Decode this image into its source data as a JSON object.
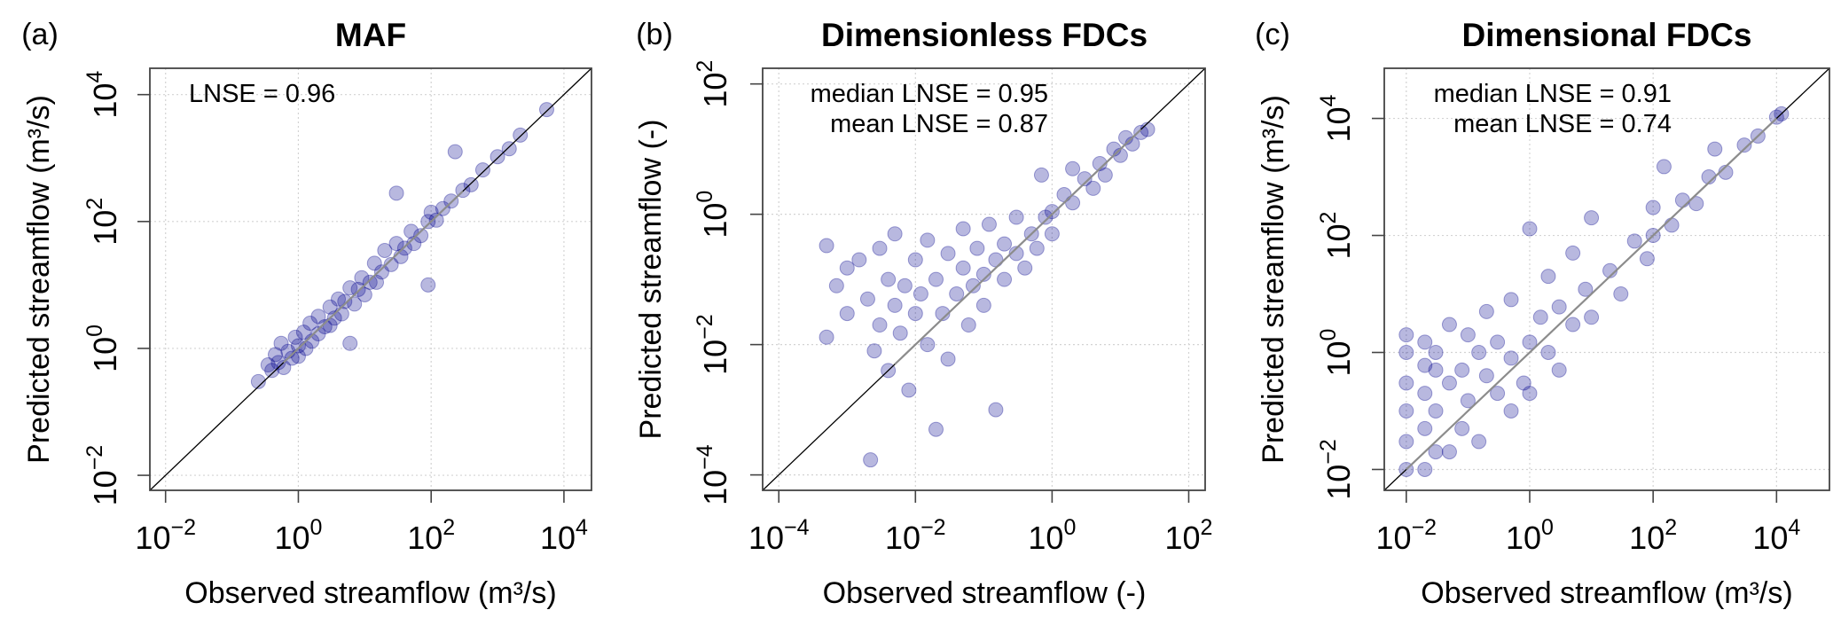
{
  "chart_data": [
    {
      "type": "scatter",
      "panel_label": "(a)",
      "title": "MAF",
      "xlabel": "Observed streamflow (m³/s)",
      "ylabel": "Predicted streamflow (m³/s)",
      "x_scale": "log10",
      "y_scale": "log10",
      "xlim": [
        0.0058,
        26000
      ],
      "ylim": [
        0.0058,
        26000
      ],
      "x_tick_exponents": [
        -2,
        0,
        2,
        4
      ],
      "y_tick_exponents": [
        -2,
        0,
        2,
        4
      ],
      "grid": true,
      "annotations": [
        "LNSE =  0.96"
      ],
      "reference_line": "1:1",
      "highlight_line_range": [
        0.6,
        300
      ],
      "point_color": "#00008B",
      "points": [
        [
          0.25,
          0.3
        ],
        [
          0.35,
          0.55
        ],
        [
          0.4,
          0.45
        ],
        [
          0.45,
          0.8
        ],
        [
          0.5,
          0.6
        ],
        [
          0.55,
          1.2
        ],
        [
          0.6,
          0.5
        ],
        [
          0.7,
          0.9
        ],
        [
          0.8,
          0.7
        ],
        [
          0.9,
          1.5
        ],
        [
          1,
          1.1
        ],
        [
          1,
          0.75
        ],
        [
          1.2,
          1.8
        ],
        [
          1.3,
          1.0
        ],
        [
          1.5,
          2.5
        ],
        [
          1.6,
          1.3
        ],
        [
          2,
          1.7
        ],
        [
          2,
          3.2
        ],
        [
          2.5,
          2.2
        ],
        [
          3,
          4.5
        ],
        [
          3,
          2.3
        ],
        [
          3.5,
          3
        ],
        [
          4,
          6
        ],
        [
          4.5,
          3.5
        ],
        [
          5,
          5.5
        ],
        [
          6,
          1.2
        ],
        [
          6,
          9
        ],
        [
          7,
          5
        ],
        [
          8,
          8.5
        ],
        [
          9,
          13
        ],
        [
          10,
          7
        ],
        [
          12,
          11
        ],
        [
          14,
          22
        ],
        [
          15,
          11
        ],
        [
          18,
          16
        ],
        [
          20,
          35
        ],
        [
          25,
          21
        ],
        [
          30,
          280
        ],
        [
          30,
          45
        ],
        [
          35,
          28
        ],
        [
          40,
          38
        ],
        [
          50,
          70
        ],
        [
          55,
          45
        ],
        [
          70,
          60
        ],
        [
          90,
          10
        ],
        [
          90,
          100
        ],
        [
          100,
          140
        ],
        [
          120,
          105
        ],
        [
          150,
          160
        ],
        [
          230,
          1260
        ],
        [
          200,
          210
        ],
        [
          300,
          310
        ],
        [
          400,
          380
        ],
        [
          600,
          650
        ],
        [
          1000,
          1050
        ],
        [
          1500,
          1400
        ],
        [
          2200,
          2300
        ],
        [
          5500,
          5800
        ]
      ]
    },
    {
      "type": "scatter",
      "panel_label": "(b)",
      "title": "Dimensionless FDCs",
      "xlabel": "Observed streamflow (-)",
      "ylabel": "Predicted streamflow (-)",
      "x_scale": "log10",
      "y_scale": "log10",
      "xlim": [
        5.8e-05,
        174
      ],
      "ylim": [
        5.8e-05,
        174
      ],
      "x_tick_exponents": [
        -4,
        -2,
        0,
        2
      ],
      "y_tick_exponents": [
        -4,
        -2,
        0,
        2
      ],
      "grid": true,
      "annotations": [
        "median LNSE =  0.95",
        "mean LNSE =  0.87"
      ],
      "reference_line": "1:1",
      "highlight_line_range": [
        0.005,
        20
      ],
      "point_color": "#00008B",
      "points": [
        [
          0.0005,
          0.33
        ],
        [
          0.0005,
          0.013
        ],
        [
          0.0007,
          0.08
        ],
        [
          0.001,
          0.15
        ],
        [
          0.001,
          0.03
        ],
        [
          0.0015,
          0.2
        ],
        [
          0.002,
          0.05
        ],
        [
          0.0022,
          0.00017
        ],
        [
          0.0025,
          0.008
        ],
        [
          0.003,
          0.3
        ],
        [
          0.003,
          0.02
        ],
        [
          0.004,
          0.1
        ],
        [
          0.004,
          0.004
        ],
        [
          0.005,
          0.04
        ],
        [
          0.005,
          0.5
        ],
        [
          0.006,
          0.015
        ],
        [
          0.007,
          0.08
        ],
        [
          0.008,
          0.002
        ],
        [
          0.01,
          0.03
        ],
        [
          0.01,
          0.2
        ],
        [
          0.012,
          0.06
        ],
        [
          0.015,
          0.4
        ],
        [
          0.015,
          0.01
        ],
        [
          0.02,
          0.1
        ],
        [
          0.02,
          0.0005
        ],
        [
          0.025,
          0.03
        ],
        [
          0.03,
          0.25
        ],
        [
          0.03,
          0.006
        ],
        [
          0.04,
          0.06
        ],
        [
          0.05,
          0.15
        ],
        [
          0.05,
          0.6
        ],
        [
          0.06,
          0.02
        ],
        [
          0.07,
          0.08
        ],
        [
          0.08,
          0.3
        ],
        [
          0.1,
          0.12
        ],
        [
          0.1,
          0.04
        ],
        [
          0.12,
          0.7
        ],
        [
          0.15,
          0.2
        ],
        [
          0.15,
          0.001
        ],
        [
          0.2,
          0.1
        ],
        [
          0.2,
          0.35
        ],
        [
          0.3,
          0.25
        ],
        [
          0.3,
          0.9
        ],
        [
          0.4,
          0.15
        ],
        [
          0.5,
          0.5
        ],
        [
          0.6,
          0.3
        ],
        [
          0.8,
          0.9
        ],
        [
          1,
          1.1
        ],
        [
          1,
          0.5
        ],
        [
          1.5,
          2
        ],
        [
          2,
          1.5
        ],
        [
          2,
          5
        ],
        [
          3,
          3.5
        ],
        [
          4,
          2.5
        ],
        [
          5,
          6
        ],
        [
          6,
          4
        ],
        [
          8,
          10
        ],
        [
          10,
          8
        ],
        [
          12,
          15
        ],
        [
          15,
          12
        ],
        [
          20,
          18
        ],
        [
          25,
          20
        ],
        [
          0.7,
          4
        ]
      ]
    },
    {
      "type": "scatter",
      "panel_label": "(c)",
      "title": "Dimensional FDCs",
      "xlabel": "Observed streamflow (m³/s)",
      "ylabel": "Predicted streamflow (m³/s)",
      "x_scale": "log10",
      "y_scale": "log10",
      "xlim": [
        0.0044,
        72000
      ],
      "ylim": [
        0.0044,
        72000
      ],
      "x_tick_exponents": [
        -2,
        0,
        2,
        4
      ],
      "y_tick_exponents": [
        -2,
        0,
        2,
        4
      ],
      "grid": true,
      "annotations": [
        "median LNSE =  0.91",
        "mean LNSE =  0.74"
      ],
      "reference_line": "1:1",
      "highlight_line_range": [
        0.01,
        10000
      ],
      "point_color": "#00008B",
      "points": [
        [
          0.01,
          0.01
        ],
        [
          0.01,
          0.03
        ],
        [
          0.01,
          0.1
        ],
        [
          0.01,
          0.3
        ],
        [
          0.01,
          1
        ],
        [
          0.01,
          2
        ],
        [
          0.02,
          0.01
        ],
        [
          0.02,
          0.05
        ],
        [
          0.02,
          0.2
        ],
        [
          0.02,
          0.6
        ],
        [
          0.02,
          1.5
        ],
        [
          0.03,
          0.02
        ],
        [
          0.03,
          0.1
        ],
        [
          0.03,
          0.5
        ],
        [
          0.03,
          1
        ],
        [
          0.05,
          0.02
        ],
        [
          0.05,
          0.3
        ],
        [
          0.05,
          3
        ],
        [
          0.08,
          0.05
        ],
        [
          0.08,
          0.5
        ],
        [
          0.1,
          0.15
        ],
        [
          0.1,
          2
        ],
        [
          0.15,
          0.03
        ],
        [
          0.15,
          1
        ],
        [
          0.2,
          0.4
        ],
        [
          0.2,
          5
        ],
        [
          0.3,
          0.2
        ],
        [
          0.3,
          1.5
        ],
        [
          0.5,
          0.1
        ],
        [
          0.5,
          0.8
        ],
        [
          0.5,
          8
        ],
        [
          0.8,
          0.3
        ],
        [
          1,
          1.5
        ],
        [
          1,
          130
        ],
        [
          1,
          0.2
        ],
        [
          1.5,
          4
        ],
        [
          2,
          1
        ],
        [
          2,
          20
        ],
        [
          3,
          0.5
        ],
        [
          3,
          6
        ],
        [
          5,
          3
        ],
        [
          5,
          50
        ],
        [
          8,
          12
        ],
        [
          10,
          4
        ],
        [
          10,
          200
        ],
        [
          20,
          25
        ],
        [
          30,
          10
        ],
        [
          50,
          80
        ],
        [
          80,
          40
        ],
        [
          100,
          300
        ],
        [
          100,
          100
        ],
        [
          150,
          1500
        ],
        [
          200,
          150
        ],
        [
          300,
          400
        ],
        [
          500,
          350
        ],
        [
          800,
          1000
        ],
        [
          1000,
          3000
        ],
        [
          1500,
          1200
        ],
        [
          3000,
          3500
        ],
        [
          5000,
          5000
        ],
        [
          10000,
          10500
        ],
        [
          12000,
          12000
        ]
      ]
    }
  ]
}
